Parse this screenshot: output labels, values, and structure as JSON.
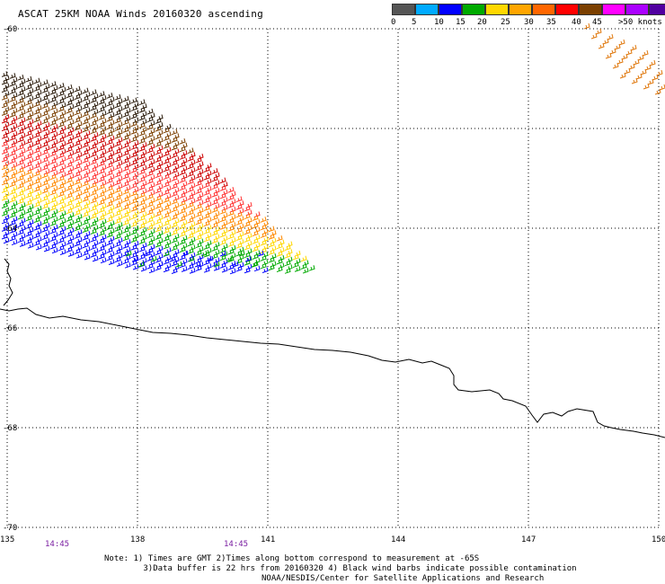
{
  "title": "ASCAT 25KM NOAA Winds 20160320 ascending",
  "legend": {
    "colors": [
      "#555555",
      "#00aaff",
      "#0000ff",
      "#00aa00",
      "#ffd700",
      "#ffa500",
      "#ff6600",
      "#ff0000",
      "#7b3f00",
      "#ff00ff",
      "#aa00ff",
      "#5000a0"
    ],
    "labels": [
      "0",
      "5",
      "10",
      "15",
      "20",
      "25",
      "30",
      "35",
      "40",
      "45",
      ">50 knots"
    ]
  },
  "axes": {
    "lon_ticks": [
      "135",
      "138",
      "141",
      "144",
      "147",
      "150"
    ],
    "lat_ticks": [
      "-60",
      "-64",
      "-66",
      "-68",
      "-70"
    ],
    "lon_range": [
      135,
      150
    ],
    "lat_range": [
      -70,
      -60
    ]
  },
  "time_labels": [
    "14:45",
    "14:45"
  ],
  "notes": {
    "line1": "Note: 1) Times are GMT 2)Times along bottom correspond to measurement at -65S",
    "line2": "3)Data buffer is 22 hrs from 20160320 4) Black wind barbs indicate possible contamination",
    "credit": "NOAA/NESDIS/Center for Satellite Applications and Research"
  },
  "wind_swath": {
    "description_colors_by_band": [
      "#2a1a0a",
      "#7b3f00",
      "#cc0000",
      "#ff3333",
      "#ff8800",
      "#ffd700",
      "#00aa00",
      "#0000ff"
    ],
    "corner_color": "#e07a10"
  },
  "coastline": "Antarctic coastline"
}
